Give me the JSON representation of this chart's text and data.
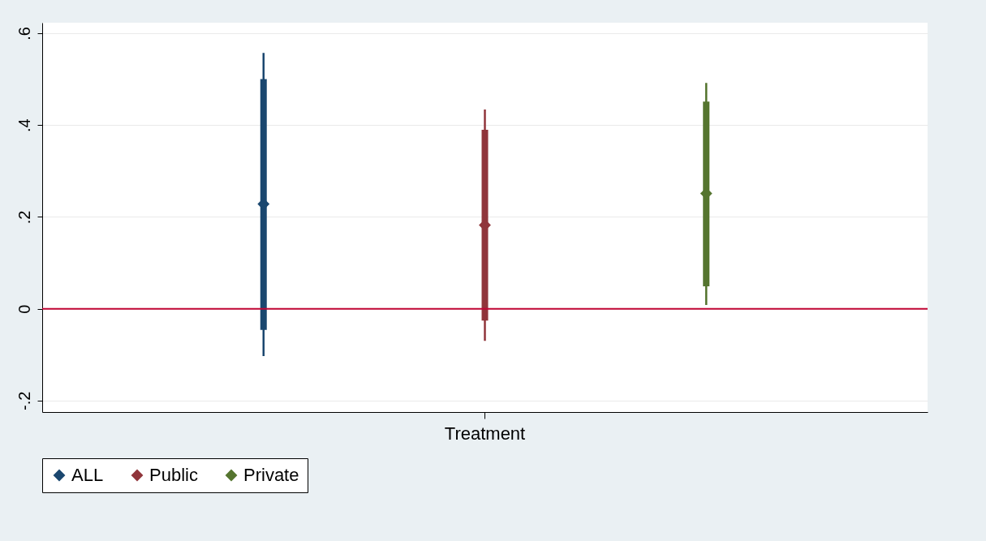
{
  "chart_data": {
    "type": "scatter",
    "categories": [
      "Treatment"
    ],
    "marker": "diamond",
    "grid": "y",
    "legend": "bottom",
    "ylim": [
      -0.225,
      0.623
    ],
    "yticks": [
      {
        "value": -0.2,
        "label": "-.2"
      },
      {
        "value": 0,
        "label": "0"
      },
      {
        "value": 0.2,
        "label": ".2"
      },
      {
        "value": 0.4,
        "label": ".4"
      },
      {
        "value": 0.6,
        "label": ".6"
      }
    ],
    "ref_lines": [
      {
        "axis": "y",
        "value": 0,
        "color": "#c10534"
      }
    ],
    "series": [
      {
        "name": "ALL",
        "color": "#1a476f",
        "values": [
          0.228
        ],
        "errors": [
          [
            -0.103,
            0.557
          ]
        ]
      },
      {
        "name": "Public",
        "color": "#90353b",
        "values": [
          0.182
        ],
        "errors": [
          [
            -0.07,
            0.434
          ]
        ]
      },
      {
        "name": "Private",
        "color": "#55752f",
        "values": [
          0.251
        ],
        "errors": [
          [
            0.008,
            0.492
          ]
        ]
      },
      {
        "type": "bar",
        "color": "#1a476f",
        "base": [
          -0.046
        ],
        "values": [
          0.546
        ]
      },
      {
        "type": "bar",
        "color": "#90353b",
        "base": [
          -0.026
        ],
        "values": [
          0.416
        ]
      },
      {
        "type": "bar",
        "color": "#55752f",
        "base": [
          0.049
        ],
        "values": [
          0.402
        ]
      }
    ]
  }
}
